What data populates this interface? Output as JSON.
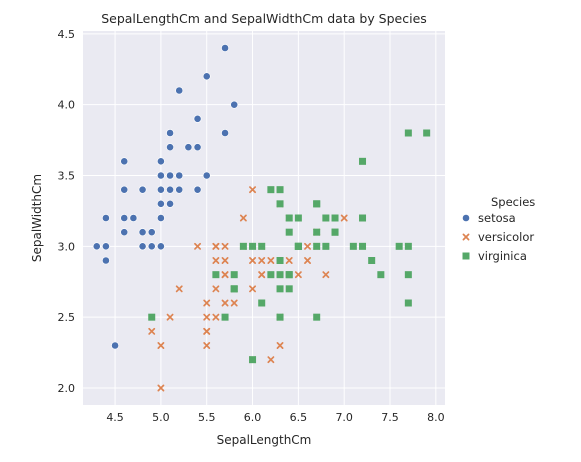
{
  "chart_data": {
    "type": "scatter",
    "title": "SepalLengthCm and SepalWidthCm data by Species",
    "xlabel": "SepalLengthCm",
    "ylabel": "SepalWidthCm",
    "xlim": [
      4.15,
      8.1
    ],
    "ylim": [
      1.88,
      4.52
    ],
    "xticks": [
      4.5,
      5.0,
      5.5,
      6.0,
      6.5,
      7.0,
      7.5,
      8.0
    ],
    "xtick_labels": [
      "4.5",
      "5.0",
      "5.5",
      "6.0",
      "6.5",
      "7.0",
      "7.5",
      "8.0"
    ],
    "yticks": [
      2.0,
      2.5,
      3.0,
      3.5,
      4.0,
      4.5
    ],
    "ytick_labels": [
      "2.0",
      "2.5",
      "3.0",
      "3.5",
      "4.0",
      "4.5"
    ],
    "grid": true,
    "style": "seaborn darkgrid",
    "legend": {
      "title": "Species",
      "placement": "outside right"
    },
    "series": [
      {
        "name": "setosa",
        "marker": "circle",
        "color": "#4c72b0",
        "points": [
          [
            5.1,
            3.5
          ],
          [
            4.9,
            3.0
          ],
          [
            4.7,
            3.2
          ],
          [
            4.6,
            3.1
          ],
          [
            5.0,
            3.6
          ],
          [
            5.4,
            3.9
          ],
          [
            4.6,
            3.4
          ],
          [
            5.0,
            3.4
          ],
          [
            4.4,
            2.9
          ],
          [
            4.9,
            3.1
          ],
          [
            5.4,
            3.7
          ],
          [
            4.8,
            3.4
          ],
          [
            4.8,
            3.0
          ],
          [
            4.3,
            3.0
          ],
          [
            5.8,
            4.0
          ],
          [
            5.7,
            4.4
          ],
          [
            5.4,
            3.9
          ],
          [
            5.1,
            3.5
          ],
          [
            5.7,
            3.8
          ],
          [
            5.1,
            3.8
          ],
          [
            5.4,
            3.4
          ],
          [
            5.1,
            3.7
          ],
          [
            4.6,
            3.6
          ],
          [
            5.1,
            3.3
          ],
          [
            4.8,
            3.4
          ],
          [
            5.0,
            3.0
          ],
          [
            5.0,
            3.4
          ],
          [
            5.2,
            3.5
          ],
          [
            5.2,
            3.4
          ],
          [
            4.7,
            3.2
          ],
          [
            4.8,
            3.1
          ],
          [
            5.4,
            3.4
          ],
          [
            5.2,
            4.1
          ],
          [
            5.5,
            4.2
          ],
          [
            4.9,
            3.1
          ],
          [
            5.0,
            3.2
          ],
          [
            5.5,
            3.5
          ],
          [
            4.9,
            3.1
          ],
          [
            4.4,
            3.0
          ],
          [
            5.1,
            3.4
          ],
          [
            5.0,
            3.5
          ],
          [
            4.5,
            2.3
          ],
          [
            4.4,
            3.2
          ],
          [
            5.0,
            3.5
          ],
          [
            5.1,
            3.8
          ],
          [
            4.8,
            3.0
          ],
          [
            5.1,
            3.8
          ],
          [
            4.6,
            3.2
          ],
          [
            5.3,
            3.7
          ],
          [
            5.0,
            3.3
          ]
        ]
      },
      {
        "name": "versicolor",
        "marker": "x",
        "color": "#dd8452",
        "points": [
          [
            7.0,
            3.2
          ],
          [
            6.4,
            3.2
          ],
          [
            6.9,
            3.1
          ],
          [
            5.5,
            2.3
          ],
          [
            6.5,
            2.8
          ],
          [
            5.7,
            2.8
          ],
          [
            6.3,
            3.3
          ],
          [
            4.9,
            2.4
          ],
          [
            6.6,
            2.9
          ],
          [
            5.2,
            2.7
          ],
          [
            5.0,
            2.0
          ],
          [
            5.9,
            3.0
          ],
          [
            6.0,
            2.2
          ],
          [
            6.1,
            2.9
          ],
          [
            5.6,
            2.9
          ],
          [
            6.7,
            3.1
          ],
          [
            5.6,
            3.0
          ],
          [
            5.8,
            2.7
          ],
          [
            6.2,
            2.2
          ],
          [
            5.6,
            2.5
          ],
          [
            5.9,
            3.2
          ],
          [
            6.1,
            2.8
          ],
          [
            6.3,
            2.5
          ],
          [
            6.1,
            2.8
          ],
          [
            6.4,
            2.9
          ],
          [
            6.6,
            3.0
          ],
          [
            6.8,
            2.8
          ],
          [
            6.7,
            3.0
          ],
          [
            6.0,
            2.9
          ],
          [
            5.7,
            2.6
          ],
          [
            5.5,
            2.4
          ],
          [
            5.5,
            2.4
          ],
          [
            5.8,
            2.7
          ],
          [
            6.0,
            2.7
          ],
          [
            5.4,
            3.0
          ],
          [
            6.0,
            3.4
          ],
          [
            6.7,
            3.1
          ],
          [
            6.3,
            2.3
          ],
          [
            5.6,
            3.0
          ],
          [
            5.5,
            2.5
          ],
          [
            5.5,
            2.6
          ],
          [
            6.1,
            3.0
          ],
          [
            5.8,
            2.6
          ],
          [
            5.0,
            2.3
          ],
          [
            5.6,
            2.7
          ],
          [
            5.7,
            3.0
          ],
          [
            5.7,
            2.9
          ],
          [
            6.2,
            2.9
          ],
          [
            5.1,
            2.5
          ],
          [
            5.7,
            2.8
          ]
        ]
      },
      {
        "name": "virginica",
        "marker": "square",
        "color": "#55a868",
        "points": [
          [
            6.3,
            3.3
          ],
          [
            5.8,
            2.7
          ],
          [
            7.1,
            3.0
          ],
          [
            6.3,
            2.9
          ],
          [
            6.5,
            3.0
          ],
          [
            7.6,
            3.0
          ],
          [
            4.9,
            2.5
          ],
          [
            7.3,
            2.9
          ],
          [
            6.7,
            2.5
          ],
          [
            7.2,
            3.6
          ],
          [
            6.5,
            3.2
          ],
          [
            6.4,
            2.7
          ],
          [
            6.8,
            3.0
          ],
          [
            5.7,
            2.5
          ],
          [
            5.8,
            2.8
          ],
          [
            6.4,
            3.2
          ],
          [
            6.5,
            3.0
          ],
          [
            7.7,
            3.8
          ],
          [
            7.7,
            2.6
          ],
          [
            6.0,
            2.2
          ],
          [
            6.9,
            3.2
          ],
          [
            5.6,
            2.8
          ],
          [
            7.7,
            2.8
          ],
          [
            6.3,
            2.7
          ],
          [
            6.7,
            3.3
          ],
          [
            7.2,
            3.2
          ],
          [
            6.2,
            2.8
          ],
          [
            6.1,
            3.0
          ],
          [
            6.4,
            2.8
          ],
          [
            7.2,
            3.0
          ],
          [
            7.4,
            2.8
          ],
          [
            7.9,
            3.8
          ],
          [
            6.4,
            2.8
          ],
          [
            6.3,
            2.8
          ],
          [
            6.1,
            2.6
          ],
          [
            7.7,
            3.0
          ],
          [
            6.3,
            3.4
          ],
          [
            6.4,
            3.1
          ],
          [
            6.0,
            3.0
          ],
          [
            6.9,
            3.1
          ],
          [
            6.7,
            3.1
          ],
          [
            6.9,
            3.1
          ],
          [
            5.8,
            2.7
          ],
          [
            6.8,
            3.2
          ],
          [
            6.7,
            3.3
          ],
          [
            6.7,
            3.0
          ],
          [
            6.3,
            2.5
          ],
          [
            6.5,
            3.0
          ],
          [
            6.2,
            3.4
          ],
          [
            5.9,
            3.0
          ]
        ]
      }
    ]
  }
}
